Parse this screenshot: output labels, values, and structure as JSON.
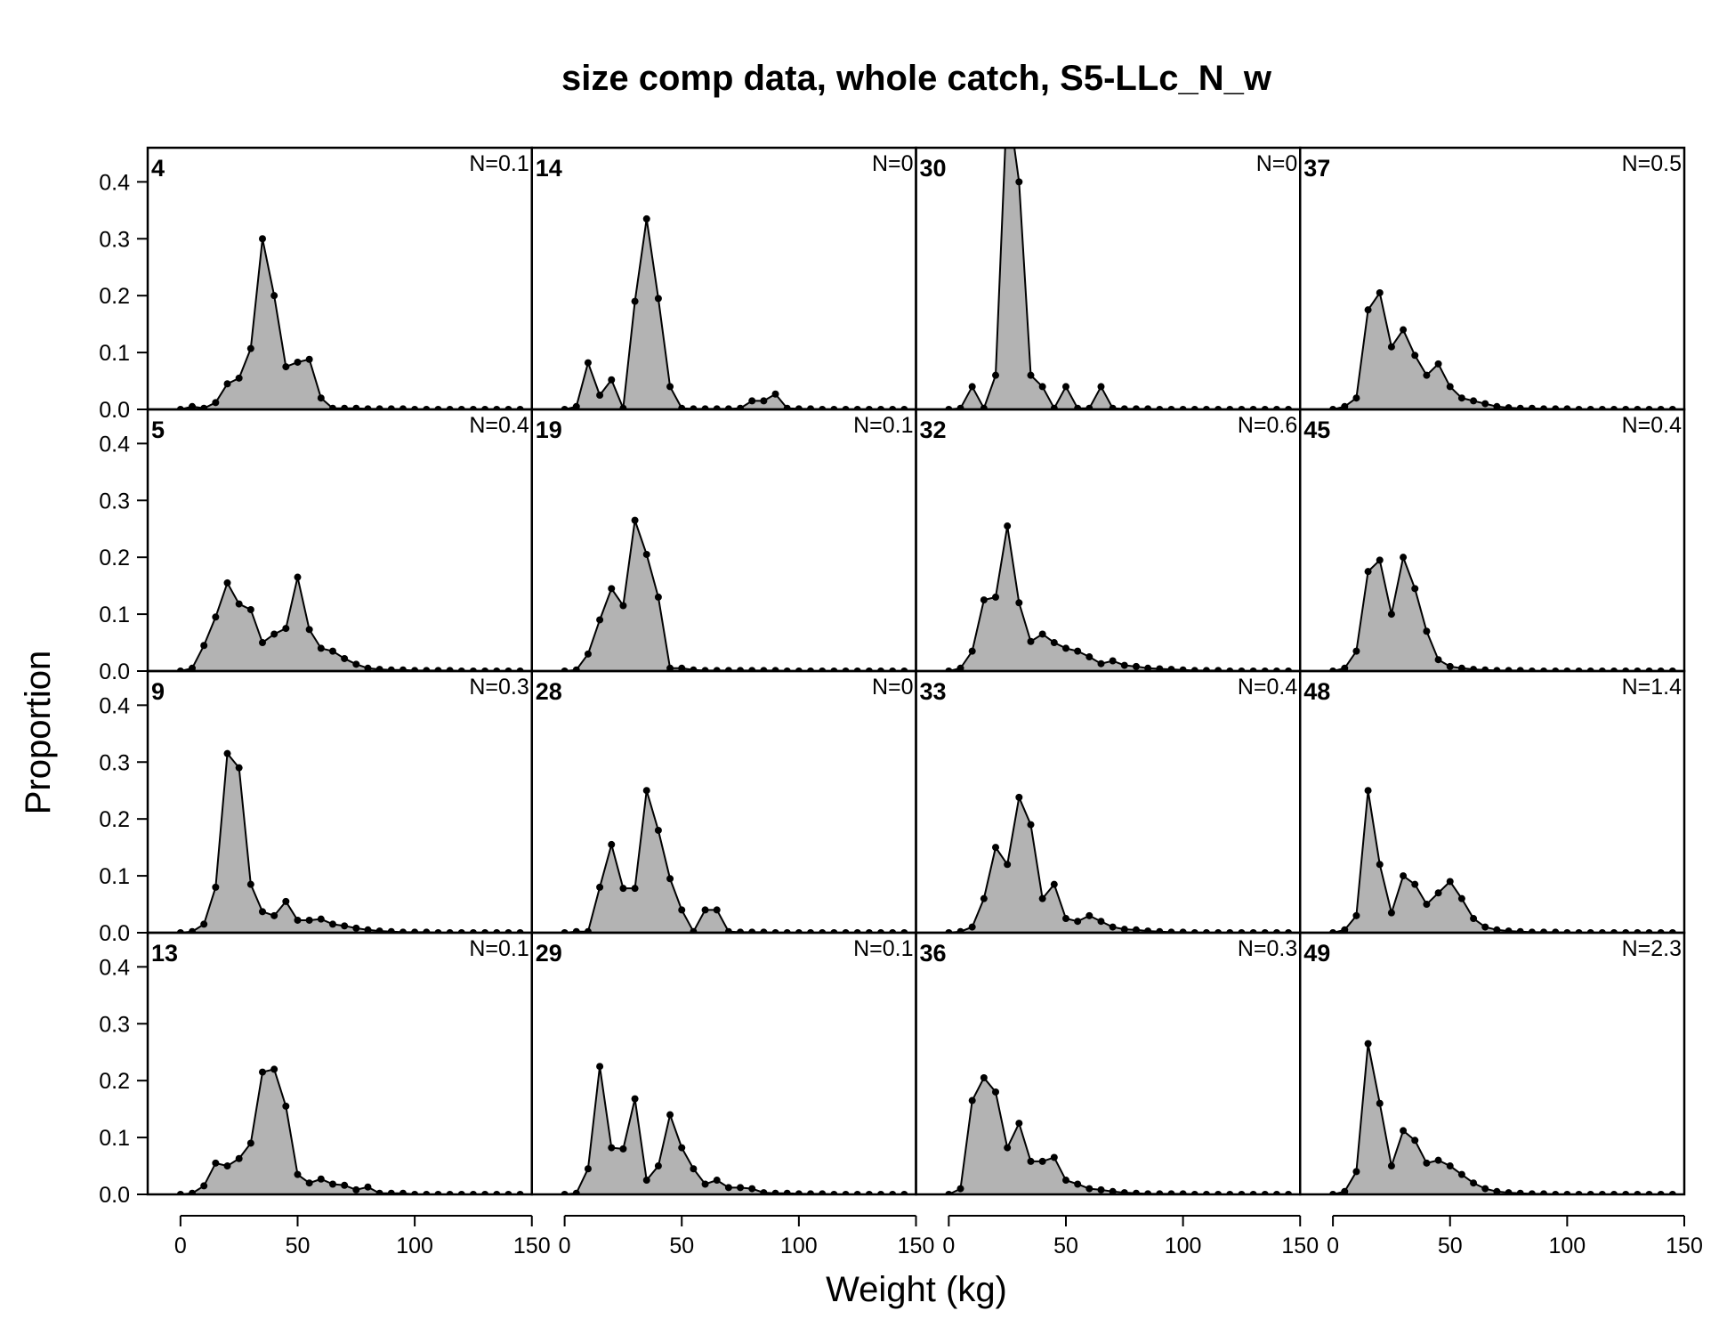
{
  "chart_data": {
    "type": "area",
    "title": "size comp data, whole catch, S5-LLc_N_w",
    "xlabel": "Weight (kg)",
    "ylabel": "Proportion",
    "xlim": [
      -14,
      150
    ],
    "ylim": [
      0,
      0.46
    ],
    "x_ticks": [
      "0",
      "50",
      "100",
      "150"
    ],
    "y_ticks": [
      "0.0",
      "0.1",
      "0.2",
      "0.3",
      "0.4"
    ],
    "x": [
      0,
      5,
      10,
      15,
      20,
      25,
      30,
      35,
      40,
      45,
      50,
      55,
      60,
      65,
      70,
      75,
      80,
      85,
      90,
      95,
      100,
      105,
      110,
      115,
      120,
      125,
      130,
      135,
      140,
      145
    ],
    "layout": "4x4, columns filled first",
    "panels": [
      {
        "id": "4",
        "n": "N=0.1",
        "values": [
          0,
          0.005,
          0.002,
          0.012,
          0.045,
          0.055,
          0.107,
          0.3,
          0.2,
          0.075,
          0.083,
          0.088,
          0.02,
          0.002,
          0.002,
          0.002,
          0.001,
          0.001,
          0.001,
          0.001,
          0,
          0,
          0,
          0,
          0,
          0,
          0,
          0,
          0,
          0
        ]
      },
      {
        "id": "5",
        "n": "N=0.4",
        "values": [
          0,
          0.005,
          0.045,
          0.095,
          0.155,
          0.118,
          0.108,
          0.05,
          0.065,
          0.075,
          0.165,
          0.073,
          0.04,
          0.035,
          0.022,
          0.012,
          0.005,
          0.003,
          0.002,
          0.002,
          0.001,
          0.001,
          0.001,
          0.001,
          0,
          0,
          0,
          0,
          0,
          0
        ]
      },
      {
        "id": "9",
        "n": "N=0.3",
        "values": [
          0,
          0.002,
          0.015,
          0.08,
          0.315,
          0.29,
          0.085,
          0.037,
          0.03,
          0.055,
          0.022,
          0.022,
          0.024,
          0.015,
          0.012,
          0.008,
          0.005,
          0.003,
          0.002,
          0.001,
          0.001,
          0.001,
          0,
          0,
          0,
          0,
          0,
          0,
          0,
          0
        ]
      },
      {
        "id": "13",
        "n": "N=0.1",
        "values": [
          0,
          0.002,
          0.015,
          0.055,
          0.05,
          0.063,
          0.09,
          0.215,
          0.22,
          0.155,
          0.035,
          0.02,
          0.027,
          0.018,
          0.016,
          0.008,
          0.013,
          0.002,
          0.002,
          0.002,
          0,
          0,
          0,
          0,
          0,
          0,
          0,
          0,
          0,
          0
        ]
      },
      {
        "id": "14",
        "n": "N=0",
        "values": [
          0,
          0.005,
          0.082,
          0.025,
          0.052,
          0.002,
          0.19,
          0.335,
          0.195,
          0.04,
          0.002,
          0.001,
          0.001,
          0.001,
          0.001,
          0.002,
          0.015,
          0.015,
          0.027,
          0.002,
          0.001,
          0.001,
          0,
          0,
          0,
          0,
          0,
          0,
          0,
          0
        ]
      },
      {
        "id": "19",
        "n": "N=0.1",
        "values": [
          0,
          0.002,
          0.03,
          0.09,
          0.145,
          0.115,
          0.265,
          0.205,
          0.13,
          0.005,
          0.005,
          0.002,
          0.001,
          0.001,
          0.001,
          0.001,
          0.001,
          0.001,
          0.001,
          0,
          0,
          0,
          0,
          0,
          0,
          0,
          0,
          0,
          0,
          0
        ]
      },
      {
        "id": "28",
        "n": "N=0",
        "values": [
          0,
          0.002,
          0.002,
          0.08,
          0.155,
          0.078,
          0.078,
          0.25,
          0.18,
          0.095,
          0.04,
          0.002,
          0.04,
          0.04,
          0.002,
          0.001,
          0.001,
          0.001,
          0,
          0,
          0,
          0,
          0,
          0,
          0,
          0,
          0,
          0,
          0,
          0
        ]
      },
      {
        "id": "29",
        "n": "N=0.1",
        "values": [
          0,
          0.002,
          0.045,
          0.225,
          0.082,
          0.08,
          0.168,
          0.025,
          0.05,
          0.14,
          0.082,
          0.045,
          0.018,
          0.025,
          0.012,
          0.012,
          0.01,
          0.003,
          0.002,
          0.002,
          0.001,
          0.001,
          0.001,
          0,
          0,
          0,
          0,
          0,
          0,
          0
        ]
      },
      {
        "id": "30",
        "n": "N=0",
        "values": [
          0,
          0.002,
          0.04,
          0.002,
          0.06,
          0.55,
          0.4,
          0.06,
          0.04,
          0.002,
          0.04,
          0.002,
          0.002,
          0.04,
          0.002,
          0.001,
          0.001,
          0.001,
          0,
          0,
          0,
          0,
          0,
          0,
          0,
          0,
          0,
          0,
          0,
          0
        ]
      },
      {
        "id": "32",
        "n": "N=0.6",
        "values": [
          0,
          0.005,
          0.035,
          0.125,
          0.13,
          0.255,
          0.12,
          0.052,
          0.065,
          0.05,
          0.04,
          0.035,
          0.025,
          0.013,
          0.018,
          0.01,
          0.008,
          0.005,
          0.004,
          0.003,
          0.002,
          0.001,
          0.001,
          0.001,
          0,
          0,
          0,
          0,
          0,
          0
        ]
      },
      {
        "id": "33",
        "n": "N=0.4",
        "values": [
          0,
          0.002,
          0.01,
          0.06,
          0.15,
          0.12,
          0.238,
          0.19,
          0.06,
          0.085,
          0.025,
          0.02,
          0.03,
          0.02,
          0.01,
          0.006,
          0.005,
          0.003,
          0.002,
          0.001,
          0.001,
          0,
          0,
          0,
          0,
          0,
          0,
          0,
          0,
          0
        ]
      },
      {
        "id": "36",
        "n": "N=0.3",
        "values": [
          0,
          0.01,
          0.165,
          0.205,
          0.18,
          0.082,
          0.125,
          0.058,
          0.058,
          0.065,
          0.025,
          0.018,
          0.01,
          0.008,
          0.005,
          0.003,
          0.002,
          0.001,
          0.001,
          0.001,
          0.001,
          0,
          0,
          0,
          0,
          0,
          0,
          0,
          0,
          0
        ]
      },
      {
        "id": "37",
        "n": "N=0.5",
        "values": [
          0,
          0.005,
          0.02,
          0.175,
          0.205,
          0.11,
          0.14,
          0.095,
          0.06,
          0.08,
          0.04,
          0.02,
          0.015,
          0.01,
          0.005,
          0.003,
          0.002,
          0.002,
          0.001,
          0.001,
          0.001,
          0,
          0,
          0,
          0,
          0,
          0,
          0,
          0,
          0
        ]
      },
      {
        "id": "45",
        "n": "N=0.4",
        "values": [
          0,
          0.005,
          0.035,
          0.175,
          0.195,
          0.1,
          0.2,
          0.145,
          0.07,
          0.02,
          0.008,
          0.005,
          0.003,
          0.002,
          0.001,
          0.001,
          0.001,
          0,
          0,
          0,
          0,
          0,
          0,
          0,
          0,
          0,
          0,
          0,
          0,
          0
        ]
      },
      {
        "id": "48",
        "n": "N=1.4",
        "values": [
          0,
          0.005,
          0.03,
          0.25,
          0.12,
          0.035,
          0.1,
          0.085,
          0.05,
          0.07,
          0.09,
          0.06,
          0.025,
          0.01,
          0.005,
          0.003,
          0.002,
          0.001,
          0.001,
          0.001,
          0,
          0,
          0,
          0,
          0,
          0,
          0,
          0,
          0,
          0
        ]
      },
      {
        "id": "49",
        "n": "N=2.3",
        "values": [
          0,
          0.005,
          0.04,
          0.265,
          0.16,
          0.05,
          0.112,
          0.095,
          0.055,
          0.06,
          0.05,
          0.035,
          0.02,
          0.01,
          0.005,
          0.003,
          0.002,
          0.001,
          0.001,
          0,
          0,
          0,
          0,
          0,
          0,
          0,
          0,
          0,
          0,
          0
        ]
      }
    ]
  }
}
